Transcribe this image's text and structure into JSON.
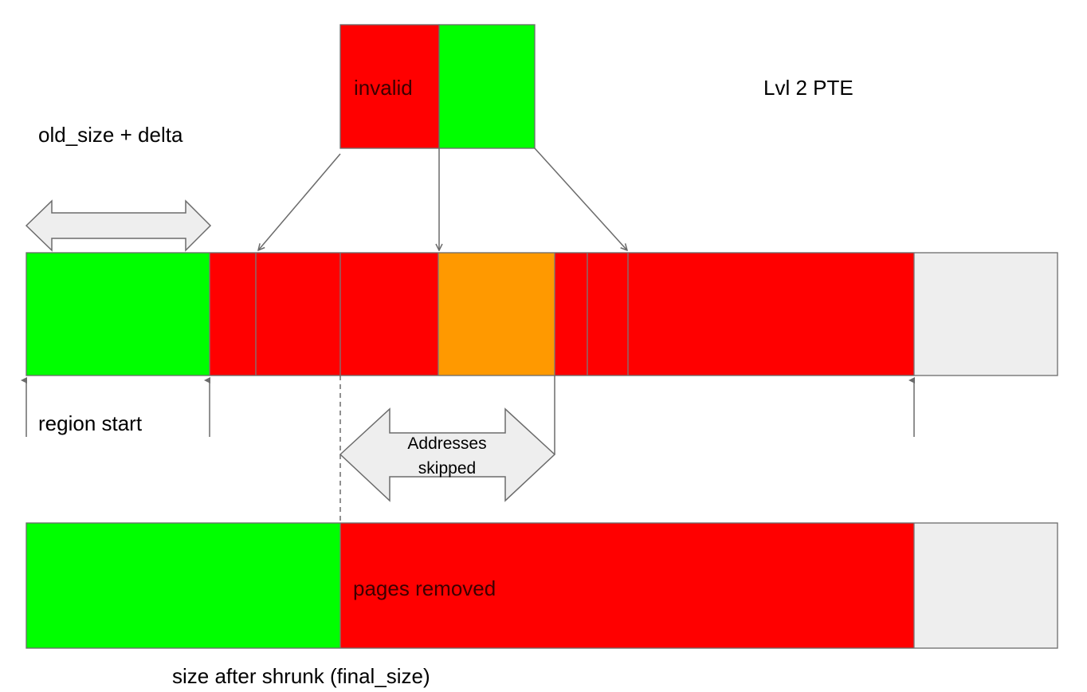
{
  "labels": {
    "old_size_delta": "old_size + delta",
    "lvl2_pte": "Lvl 2 PTE",
    "invalid": "invalid",
    "region_start": "region start",
    "addresses_skipped_line1": "Addresses",
    "addresses_skipped_line2": "skipped",
    "pages_removed": "pages removed",
    "size_after_shrunk": "size after shrunk (final_size)"
  },
  "colors": {
    "valid": "#00ff00",
    "invalid": "#ff0000",
    "skipped": "#ff9900",
    "unused": "#eeeeee",
    "arrow_fill": "#eeeeee",
    "outline": "#6b6b6b"
  }
}
